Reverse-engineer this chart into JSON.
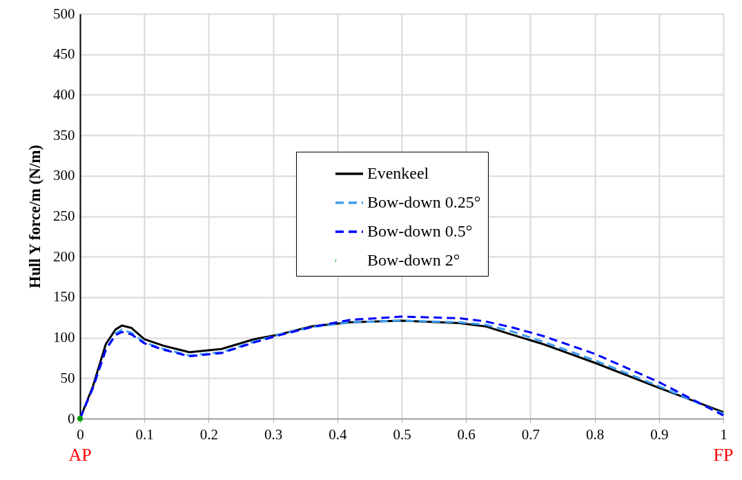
{
  "chart_data": {
    "type": "line",
    "ylabel": "Hull Y force/m (N/m)",
    "x": [
      0,
      0.02,
      0.04,
      0.055,
      0.065,
      0.08,
      0.1,
      0.13,
      0.17,
      0.22,
      0.27,
      0.31,
      0.36,
      0.42,
      0.5,
      0.59,
      0.63,
      0.67,
      0.72,
      0.8,
      0.9,
      1
    ],
    "series": [
      {
        "name": "Evenkeel",
        "color": "#000000",
        "line_style": "solid",
        "values": [
          0,
          40,
          92,
          110,
          115,
          112,
          98,
          90,
          82,
          86,
          98,
          104,
          114,
          119,
          121,
          118,
          114,
          104,
          92,
          69,
          38,
          8
        ]
      },
      {
        "name": "Bow-down 0.25°",
        "color": "#3c9cf0",
        "line_style": "dashed",
        "values": [
          0,
          38,
          85,
          105,
          110,
          106,
          94,
          86,
          78,
          82,
          95,
          104,
          113,
          119,
          121,
          119,
          116,
          108,
          95,
          72,
          40,
          6
        ]
      },
      {
        "name": "Bow-down 0.5°",
        "color": "#0000ff",
        "line_style": "dashed",
        "values": [
          0,
          38,
          85,
          103,
          107,
          104,
          93,
          85,
          77,
          81,
          94,
          103,
          113,
          122,
          126,
          124,
          120,
          113,
          102,
          80,
          45,
          4
        ]
      },
      {
        "name": "Bow-down 2°",
        "color": "#00a000",
        "type": "scatter",
        "marker": "circle",
        "x": [
          0
        ],
        "values": [
          0
        ]
      }
    ],
    "xlim": [
      0,
      1
    ],
    "xticks": [
      0,
      0.1,
      0.2,
      0.3,
      0.4,
      0.5,
      0.6,
      0.7,
      0.8,
      0.9,
      1
    ],
    "ylim": [
      0,
      500
    ],
    "yticks": [
      0,
      50,
      100,
      150,
      200,
      250,
      300,
      350,
      400,
      450,
      500
    ],
    "grid": true,
    "legend": "center",
    "annotations": [
      "AP",
      "FP"
    ]
  }
}
